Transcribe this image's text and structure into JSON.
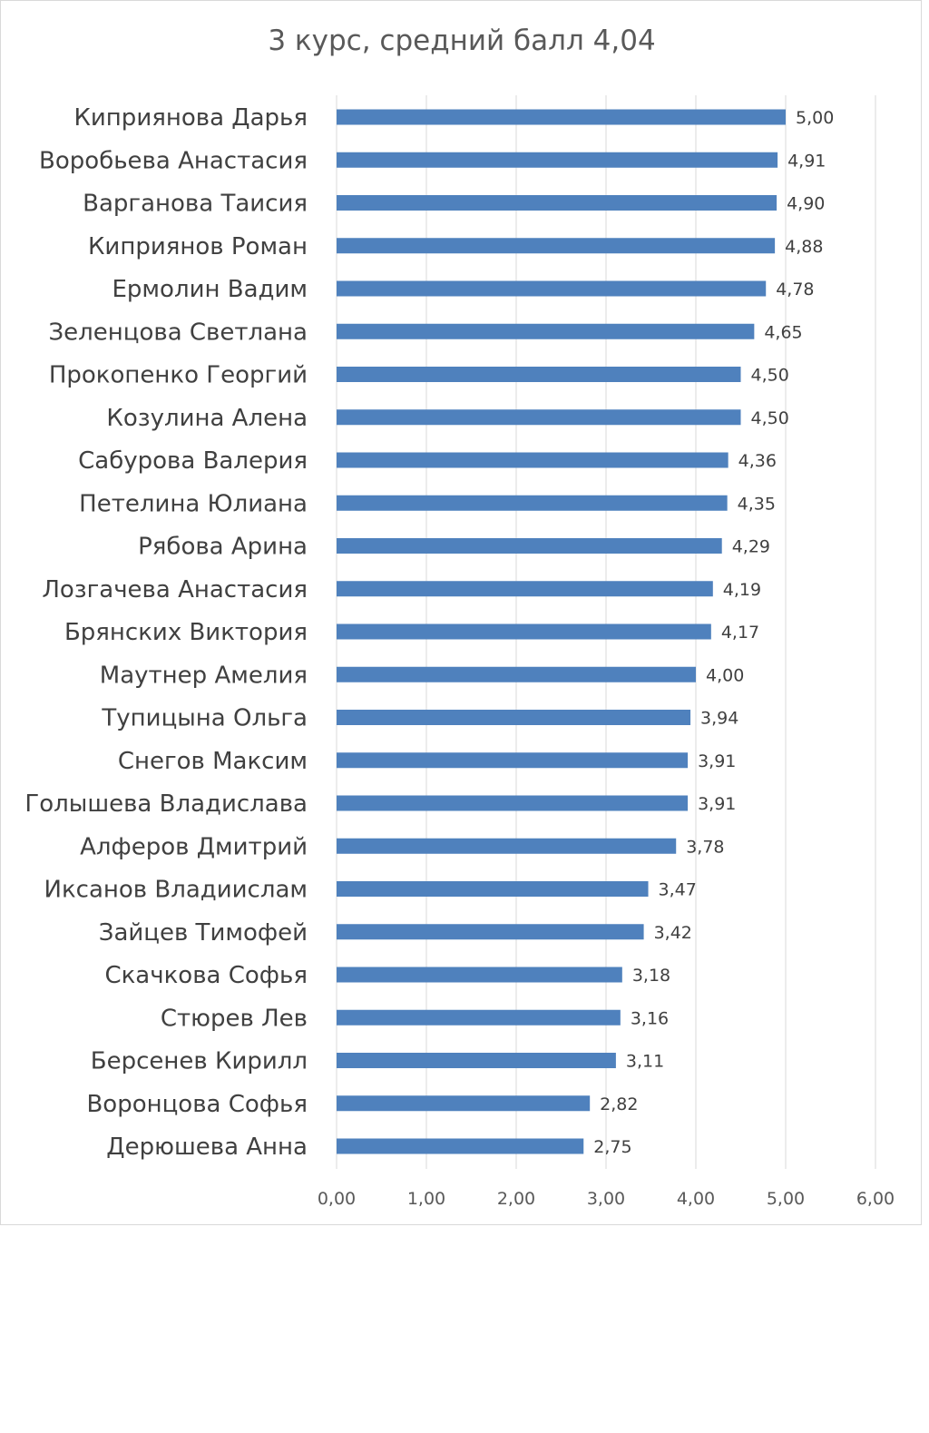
{
  "chart_data": {
    "type": "bar",
    "orientation": "horizontal",
    "title": "3 курс, средний балл 4,04",
    "categories": [
      "Киприянова Дарья",
      "Воробьева Анастасия",
      "Варганова Таисия",
      "Киприянов Роман",
      "Ермолин Вадим",
      "Зеленцова Светлана",
      "Прокопенко  Георгий",
      "Козулина Алена",
      "Сабурова Валерия",
      "Петелина Юлиана",
      "Рябова Арина",
      "Лозгачева Анастасия",
      "Брянских Виктория",
      "Маутнер Амелия",
      "Тупицына Ольга",
      "Снегов Максим",
      "Голышева Владислава",
      "Алферов  Дмитрий",
      "Иксанов Владиислам",
      "Зайцев Тимофей",
      "Скачкова Софья",
      "Стюрев Лев",
      "Берсенев Кирилл",
      "Воронцова Софья",
      "Дерюшева Анна"
    ],
    "values": [
      5.0,
      4.91,
      4.9,
      4.88,
      4.78,
      4.65,
      4.5,
      4.5,
      4.36,
      4.35,
      4.29,
      4.19,
      4.17,
      4.0,
      3.94,
      3.91,
      3.91,
      3.78,
      3.47,
      3.42,
      3.18,
      3.16,
      3.11,
      2.82,
      2.75
    ],
    "value_labels": [
      "5,00",
      "4,91",
      "4,90",
      "4,88",
      "4,78",
      "4,65",
      "4,50",
      "4,50",
      "4,36",
      "4,35",
      "4,29",
      "4,19",
      "4,17",
      "4,00",
      "3,94",
      "3,91",
      "3,91",
      "3,78",
      "3,47",
      "3,42",
      "3,18",
      "3,16",
      "3,11",
      "2,82",
      "2,75"
    ],
    "xlim": [
      0,
      6
    ],
    "x_ticks": [
      "0,00",
      "1,00",
      "2,00",
      "3,00",
      "4,00",
      "5,00",
      "6,00"
    ],
    "grid": true,
    "legend": false,
    "bar_color": "#4f81bd",
    "grid_color": "#d9d9d9"
  }
}
